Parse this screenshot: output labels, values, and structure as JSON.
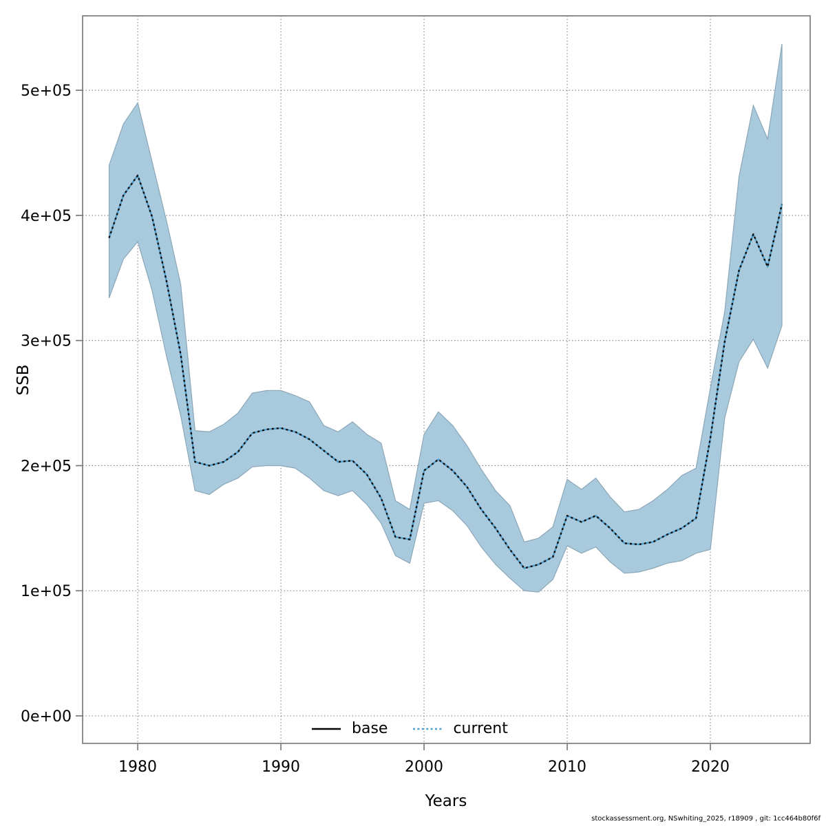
{
  "colors": {
    "band_fill": "#a9c9dc",
    "band_edge": "#8ba7b8",
    "base_line": "#4f9cc9",
    "current_line": "#0d0d0d",
    "grid": "#7d7d7d",
    "frame": "#7a7a7a",
    "text": "#000000",
    "legend_base": "#000000",
    "legend_current": "#4a9fd0"
  },
  "legend": {
    "base_label": "base",
    "current_label": "current"
  },
  "footer": {
    "text": "stockassessment.org, NSwhiting_2025, r18909 , git: 1cc464b80f6f"
  },
  "chart_data": {
    "type": "line",
    "title": "",
    "xlabel": "Years",
    "ylabel": "SSB",
    "grid": "dotted at ticks, both axes",
    "legend_position": "bottom-center-inside",
    "xlim": [
      1976.15,
      2026.97
    ],
    "ylim": [
      -22000,
      559500
    ],
    "x_ticks": [
      {
        "value": 1980,
        "label": "1980"
      },
      {
        "value": 1990,
        "label": "1990"
      },
      {
        "value": 2000,
        "label": "2000"
      },
      {
        "value": 2010,
        "label": "2010"
      },
      {
        "value": 2020,
        "label": "2020"
      }
    ],
    "y_ticks": [
      {
        "value": 0,
        "label": "0e+00"
      },
      {
        "value": 100000,
        "label": "1e+05"
      },
      {
        "value": 200000,
        "label": "2e+05"
      },
      {
        "value": 300000,
        "label": "3e+05"
      },
      {
        "value": 400000,
        "label": "4e+05"
      },
      {
        "value": 500000,
        "label": "5e+05"
      }
    ],
    "years": [
      1978,
      1979,
      1980,
      1981,
      1982,
      1983,
      1984,
      1985,
      1986,
      1987,
      1988,
      1989,
      1990,
      1991,
      1992,
      1993,
      1994,
      1995,
      1996,
      1997,
      1998,
      1999,
      2000,
      2001,
      2002,
      2003,
      2004,
      2005,
      2006,
      2007,
      2008,
      2009,
      2010,
      2011,
      2012,
      2013,
      2014,
      2015,
      2016,
      2017,
      2018,
      2019,
      2020,
      2021,
      2022,
      2023,
      2024,
      2025
    ],
    "series": [
      {
        "name": "current",
        "style": "dotted, black over blue base",
        "values": [
          382000,
          416000,
          432000,
          399000,
          348000,
          289000,
          203000,
          200000,
          203000,
          211000,
          226000,
          229000,
          230000,
          227000,
          221000,
          212000,
          203000,
          204000,
          193000,
          174000,
          143000,
          141000,
          196000,
          205000,
          196000,
          183000,
          165000,
          150000,
          133000,
          118000,
          121000,
          127000,
          160000,
          155000,
          160000,
          150000,
          138000,
          137000,
          139000,
          145000,
          150000,
          158000,
          222000,
          299000,
          356000,
          385000,
          359000,
          409000
        ]
      }
    ],
    "band": {
      "lower": [
        334000,
        365000,
        379000,
        340000,
        288000,
        240000,
        180000,
        177000,
        185000,
        190000,
        199000,
        200000,
        200000,
        198000,
        190000,
        180000,
        176000,
        180000,
        169000,
        154000,
        128000,
        122000,
        170000,
        172000,
        164000,
        152000,
        135000,
        121000,
        110000,
        100000,
        99000,
        109000,
        136000,
        130000,
        135000,
        123000,
        114000,
        115000,
        118000,
        122000,
        124000,
        130000,
        133000,
        238000,
        283000,
        301000,
        278000,
        312000
      ],
      "upper": [
        440000,
        473000,
        490000,
        443000,
        396000,
        345000,
        228000,
        227000,
        233000,
        242000,
        258000,
        260000,
        260000,
        256000,
        251000,
        232000,
        227000,
        235000,
        225000,
        218000,
        172000,
        165000,
        225000,
        243000,
        232000,
        216000,
        197000,
        180000,
        168000,
        139000,
        142000,
        151000,
        189000,
        181000,
        190000,
        175000,
        163000,
        165000,
        172000,
        181000,
        192000,
        198000,
        262000,
        323000,
        431000,
        488000,
        461000,
        537000
      ]
    }
  }
}
